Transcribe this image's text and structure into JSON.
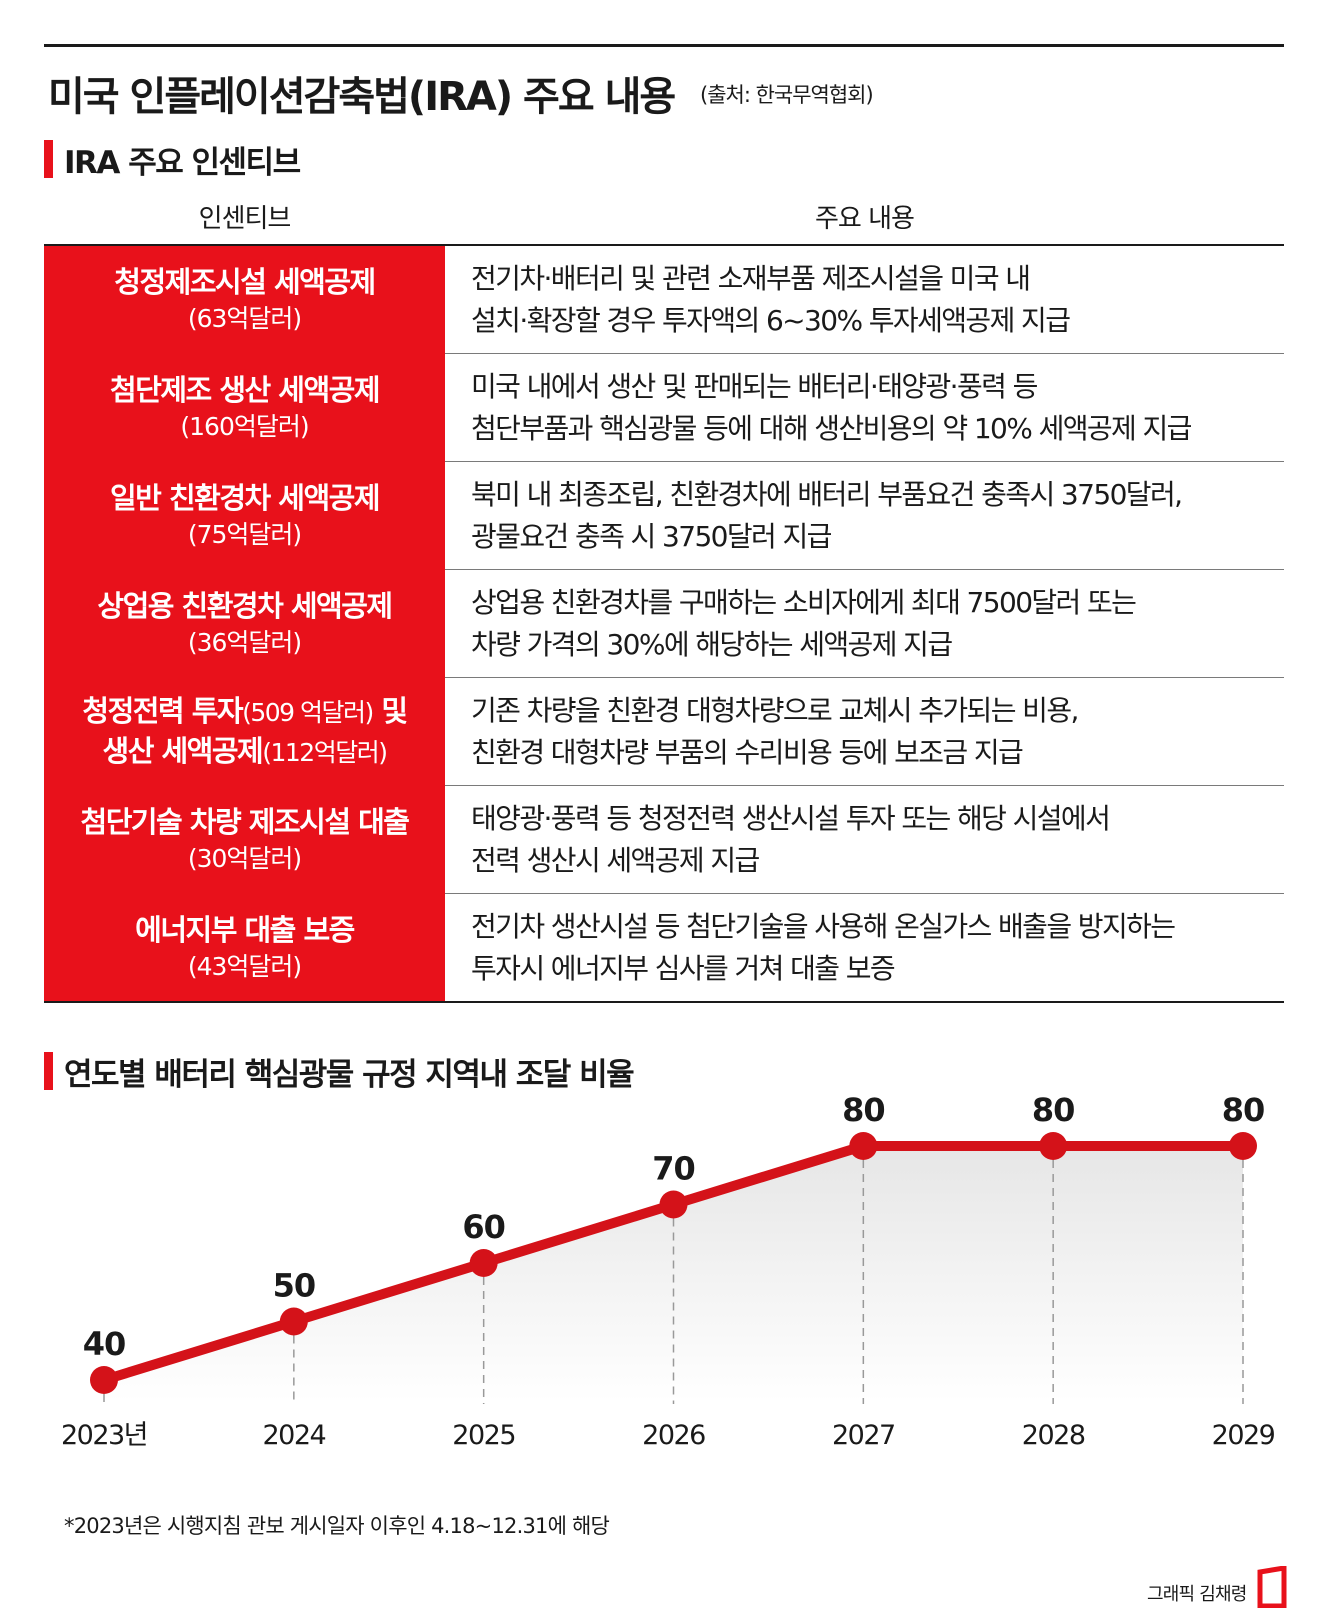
{
  "title": "미국 인플레이션감축법(IRA) 주요 내용",
  "source": "(출처: 한국무역협회)",
  "section1_title": "IRA 주요 인센티브",
  "table": {
    "headers": [
      "인센티브",
      "주요 내용"
    ],
    "rows": [
      {
        "name": "청정제조시설 세액공제",
        "amount": "(63억달러)",
        "lines": [
          "전기차·배터리 및 관련 소재부품 제조시설을 미국 내",
          "설치·확장할 경우 투자액의 6~30% 투자세액공제 지급"
        ]
      },
      {
        "name": "첨단제조 생산 세액공제",
        "amount": "(160억달러)",
        "lines": [
          "미국 내에서 생산 및 판매되는 배터리·태양광·풍력 등",
          "첨단부품과 핵심광물 등에 대해 생산비용의 약 10% 세액공제 지급"
        ]
      },
      {
        "name": "일반 친환경차 세액공제",
        "amount": "(75억달러)",
        "lines": [
          "북미 내 최종조립, 친환경차에 배터리 부품요건 충족시 3750달러,",
          "광물요건 충족 시 3750달러 지급"
        ]
      },
      {
        "name": "상업용 친환경차 세액공제",
        "amount": "(36억달러)",
        "lines": [
          "상업용 친환경차를 구매하는 소비자에게 최대 7500달러 또는",
          "차량 가격의 30%에 해당하는 세액공제 지급"
        ]
      },
      {
        "name_part1": "청정전력 투자",
        "amount_part1": "(509 억달러)",
        "name_part2": "및",
        "name_part3": "생산 세액공제",
        "amount_part3": "(112억달러)",
        "lines": [
          "기존 차량을 친환경 대형차량으로 교체시 추가되는 비용,",
          "친환경 대형차량 부품의 수리비용 등에 보조금 지급"
        ]
      },
      {
        "name": "첨단기술 차량 제조시설 대출",
        "amount": "(30억달러)",
        "lines": [
          "태양광·풍력 등 청정전력 생산시설 투자 또는 해당 시설에서",
          "전력 생산시 세액공제 지급"
        ]
      },
      {
        "name": "에너지부 대출 보증",
        "amount": "(43억달러)",
        "lines": [
          "전기차 생산시설 등 첨단기술을 사용해 온실가스 배출을 방지하는",
          "투자시 에너지부 심사를 거쳐 대출 보증"
        ]
      }
    ]
  },
  "section2_title": "연도별 배터리 핵심광물 규정 지역내 조달 비율",
  "chart_data": {
    "type": "area",
    "title": "연도별 배터리 핵심광물 규정 지역내 조달 비율",
    "categories": [
      "2023년",
      "2024",
      "2025",
      "2026",
      "2027",
      "2028",
      "2029"
    ],
    "values": [
      40,
      50,
      60,
      70,
      80,
      80,
      80
    ],
    "data_labels": [
      "40",
      "50",
      "60",
      "70",
      "80",
      "80",
      "80"
    ],
    "xlabel": "",
    "ylabel": "",
    "ylim": [
      0,
      100
    ],
    "grid": "vertical dashed drop lines",
    "legend": "none",
    "colors": {
      "line": "#d41219",
      "fill": "#f0f0f0",
      "drop_line": "#999999"
    }
  },
  "footnote": "*2023년은 시행지침 관보 게시일자 이후인 4.18~12.31에 해당",
  "credit": "그래픽 김채령",
  "colors": {
    "accent": "#e8111b",
    "text": "#1a1a1a"
  }
}
